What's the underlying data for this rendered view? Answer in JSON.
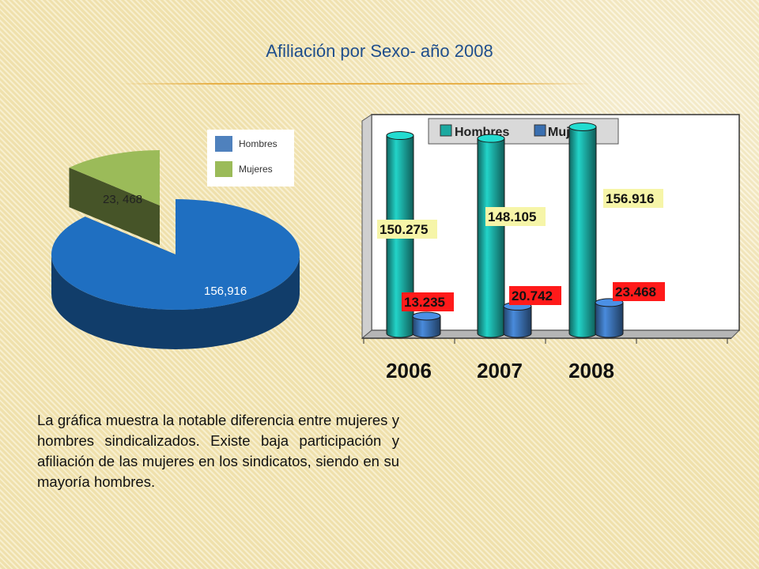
{
  "slide": {
    "title": "Afiliación por Sexo- año 2008",
    "description": "La gráfica muestra la notable diferencia entre mujeres y hombres sindicalizados. Existe baja participación y afiliación de las mujeres en los sindicatos, siendo en su mayoría hombres."
  },
  "colors": {
    "pie_hombres": "#1f6fc1",
    "pie_mujeres": "#9bbb59",
    "bar_hombres": "#1ba9a0",
    "bar_mujeres": "#3a6fb0",
    "label_hombres_bg": "#f6f5a8",
    "label_mujeres_bg": "#ff1a1a"
  },
  "chart_data": [
    {
      "type": "pie",
      "style": "3d",
      "legend_position": "top-right",
      "legend": [
        "Hombres",
        "Mujeres"
      ],
      "slices": [
        {
          "name": "Hombres",
          "value": 156916,
          "label": "156,916"
        },
        {
          "name": "Mujeres",
          "value": 23468,
          "label": "23, 468"
        }
      ]
    },
    {
      "type": "bar",
      "style": "3d-cylinder",
      "legend_position": "top",
      "legend": [
        "Hombres",
        "Mujeres"
      ],
      "categories": [
        "2006",
        "2007",
        "2008"
      ],
      "series": [
        {
          "name": "Hombres",
          "values": [
            150275,
            148105,
            156916
          ],
          "labels": [
            "150.275",
            "148.105",
            "156.916"
          ]
        },
        {
          "name": "Mujeres",
          "values": [
            13235,
            20742,
            23468
          ],
          "labels": [
            "13.235",
            "20.742",
            "23.468"
          ]
        }
      ],
      "ylim": [
        0,
        180000
      ],
      "grid": false
    }
  ]
}
